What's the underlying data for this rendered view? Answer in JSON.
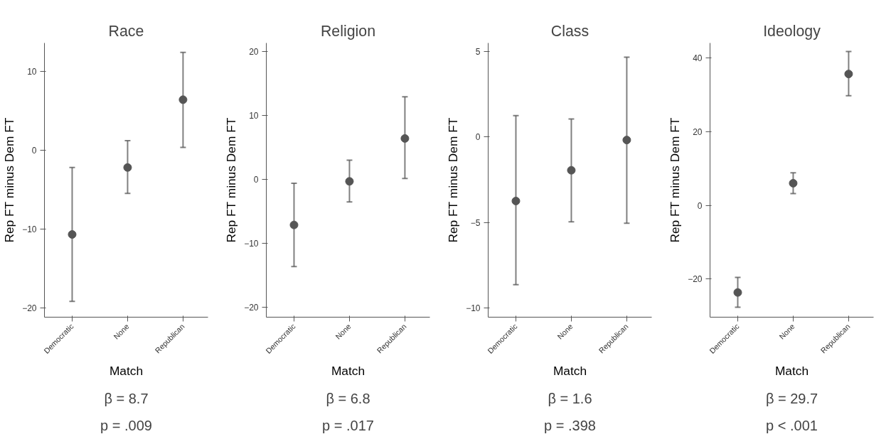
{
  "chart_data": [
    {
      "type": "scatter",
      "title": "Race",
      "xlabel": "Match",
      "ylabel": "Rep FT minus Dem FT",
      "categories": [
        "Democratic",
        "None",
        "Republican"
      ],
      "marker": "circle",
      "grid": false,
      "ylim": [
        -21.2,
        13.6
      ],
      "yticks": [
        -20,
        -10,
        0,
        10
      ],
      "series": [
        {
          "color": "#555555",
          "values": [
            -10.7,
            -2.2,
            6.4
          ],
          "errors": [
            [
              -19.2,
              -2.2
            ],
            [
              -5.5,
              1.2
            ],
            [
              0.35,
              12.4
            ]
          ]
        }
      ],
      "annotations": [
        "β = 8.7",
        "p = .009"
      ]
    },
    {
      "type": "scatter",
      "title": "Religion",
      "xlabel": "Match",
      "ylabel": "Rep FT minus Dem FT",
      "categories": [
        "Democratic",
        "None",
        "Republican"
      ],
      "marker": "circle",
      "grid": false,
      "ylim": [
        -21.5,
        21.3
      ],
      "yticks": [
        -20,
        -10,
        0,
        10,
        20
      ],
      "series": [
        {
          "color": "#555555",
          "values": [
            -7.1,
            -0.3,
            6.4
          ],
          "errors": [
            [
              -13.6,
              -0.6
            ],
            [
              -3.5,
              3.0
            ],
            [
              0.15,
              12.9
            ]
          ]
        }
      ],
      "annotations": [
        "β = 6.8",
        "p = .017"
      ]
    },
    {
      "type": "scatter",
      "title": "Class",
      "xlabel": "Match",
      "ylabel": "Rep FT minus Dem FT",
      "categories": [
        "Democratic",
        "None",
        "Republican"
      ],
      "marker": "circle",
      "grid": false,
      "ylim": [
        -10.55,
        5.5
      ],
      "yticks": [
        -10,
        -5,
        0,
        5
      ],
      "series": [
        {
          "color": "#555555",
          "values": [
            -3.75,
            -1.95,
            -0.18
          ],
          "errors": [
            [
              -8.65,
              1.25
            ],
            [
              -4.97,
              1.05
            ],
            [
              -5.05,
              4.67
            ]
          ]
        }
      ],
      "annotations": [
        "β = 1.6",
        "p = .398"
      ]
    },
    {
      "type": "scatter",
      "title": "Ideology",
      "xlabel": "Match",
      "ylabel": "Rep FT minus Dem FT",
      "categories": [
        "Democratic",
        "None",
        "Republican"
      ],
      "marker": "circle",
      "grid": false,
      "ylim": [
        -30.3,
        44
      ],
      "yticks": [
        -20,
        0,
        20,
        40
      ],
      "series": [
        {
          "color": "#555555",
          "values": [
            -23.6,
            6.0,
            35.6
          ],
          "errors": [
            [
              -27.6,
              -19.5
            ],
            [
              3.2,
              8.8
            ],
            [
              29.7,
              41.7
            ]
          ]
        }
      ],
      "annotations": [
        "β = 29.7",
        "p < .001"
      ]
    }
  ]
}
